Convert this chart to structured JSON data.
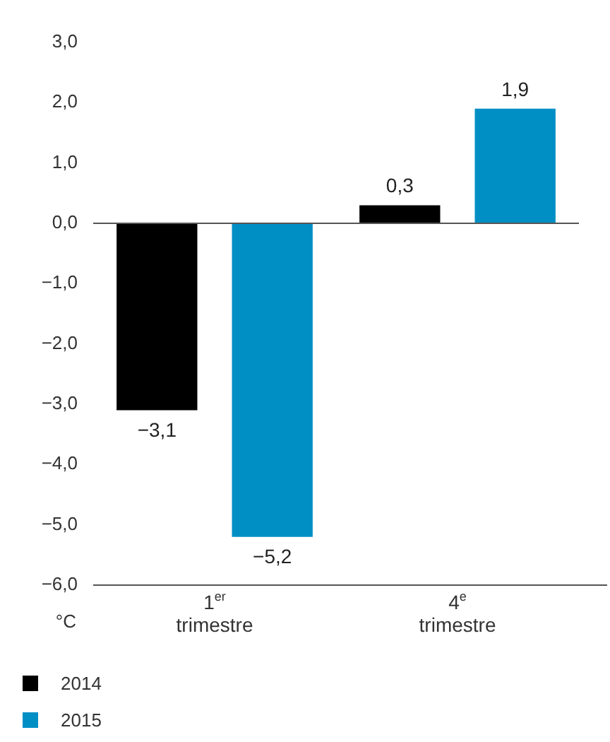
{
  "chart_data": {
    "type": "bar",
    "categories": [
      "1$^{er}$ trimestre",
      "4$^{e}$ trimestre"
    ],
    "series": [
      {
        "name": "2014",
        "color": "#000000",
        "values": [
          -3.1,
          0.3
        ],
        "value_labels": [
          "−3,1",
          "0,3"
        ]
      },
      {
        "name": "2015",
        "color": "#008fc5",
        "values": [
          -5.2,
          1.9
        ],
        "value_labels": [
          "−5,2",
          "1,9"
        ]
      }
    ],
    "annotations": [
      "°C"
    ],
    "ylim": [
      -6,
      3
    ],
    "ref_lines": [
      {
        "axis": "y",
        "value": 0
      }
    ],
    "yticks": [
      {
        "value": 3,
        "label": "3,0"
      },
      {
        "value": 2,
        "label": "2,0"
      },
      {
        "value": 1,
        "label": "1,0"
      },
      {
        "value": 0,
        "label": "0,0"
      },
      {
        "value": -1,
        "label": "−1,0"
      },
      {
        "value": -2,
        "label": "−2,0"
      },
      {
        "value": -3,
        "label": "−3,0"
      },
      {
        "value": -4,
        "label": "−4,0"
      },
      {
        "value": -5,
        "label": "−5,0"
      },
      {
        "value": -6,
        "label": "−6,0"
      }
    ],
    "grid": false,
    "legend": "bottom left"
  }
}
